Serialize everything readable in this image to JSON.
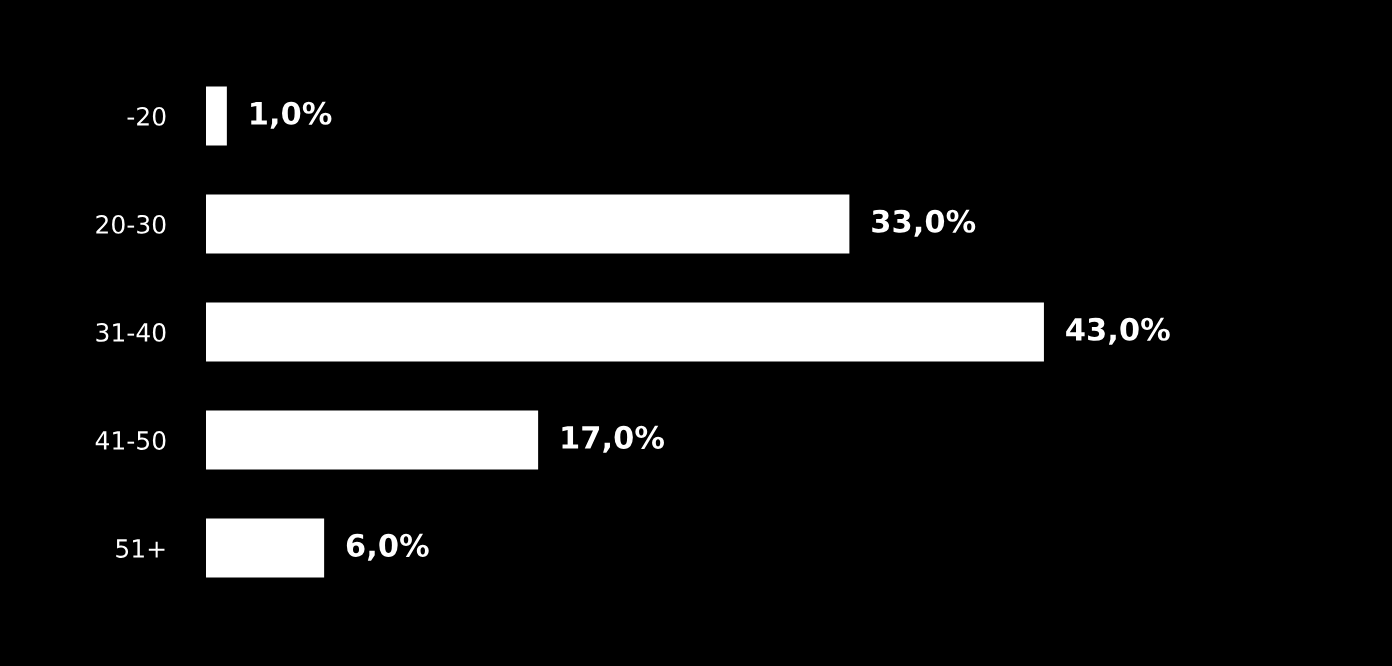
{
  "chart_data": {
    "type": "bar",
    "orientation": "horizontal",
    "categories": [
      "-20",
      "20-30",
      "31-40",
      "41-50",
      "51+"
    ],
    "values": [
      1,
      33,
      43,
      17,
      6
    ],
    "value_labels": [
      "1,0%",
      "33,0%",
      "43,0%",
      "17,0%",
      "6,0%"
    ],
    "color": "#ffffff",
    "tick_labels": "y",
    "grid": false,
    "legend": false
  }
}
